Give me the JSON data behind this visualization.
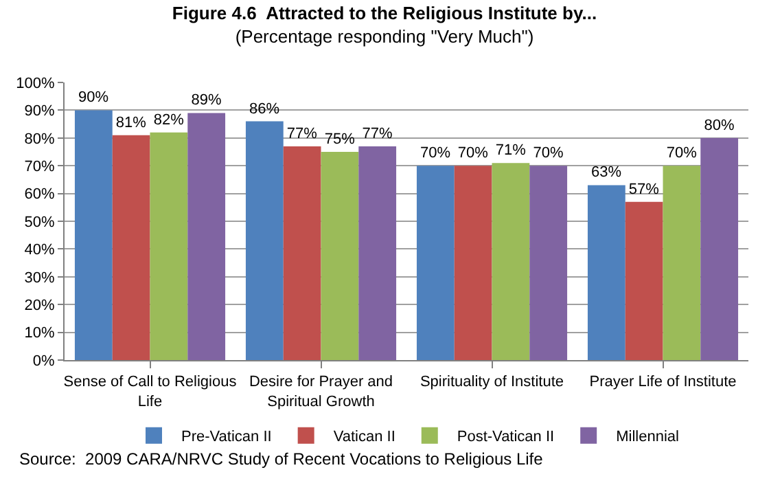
{
  "chart_data": {
    "type": "bar",
    "title": "Figure 4.6  Attracted to the Religious Institute by...",
    "subtitle": "(Percentage responding \"Very Much\")",
    "categories": [
      "Sense of Call to Religious Life",
      "Desire for Prayer and Spiritual Growth",
      "Spirituality of Institute",
      "Prayer Life of Institute"
    ],
    "series": [
      {
        "name": "Pre-Vatican II",
        "color": "#4f81bd",
        "values": [
          90,
          86,
          70,
          63
        ],
        "value_labels": [
          "90%",
          "86%",
          "70%",
          "63%"
        ]
      },
      {
        "name": "Vatican II",
        "color": "#c0504d",
        "values": [
          81,
          77,
          70,
          57
        ],
        "value_labels": [
          "81%",
          "77%",
          "70%",
          "57%"
        ]
      },
      {
        "name": "Post-Vatican II",
        "color": "#9bbb59",
        "values": [
          82,
          75,
          71,
          70
        ],
        "value_labels": [
          "82%",
          "75%",
          "71%",
          "70%"
        ]
      },
      {
        "name": "Millennial",
        "color": "#8064a2",
        "values": [
          89,
          77,
          70,
          80
        ],
        "value_labels": [
          "89%",
          "77%",
          "70%",
          "80%"
        ]
      }
    ],
    "ylim": [
      0,
      100
    ],
    "yticks": [
      {
        "value": 0,
        "label": "0%"
      },
      {
        "value": 10,
        "label": "10%"
      },
      {
        "value": 20,
        "label": "20%"
      },
      {
        "value": 30,
        "label": "30%"
      },
      {
        "value": 40,
        "label": "40%"
      },
      {
        "value": 50,
        "label": "50%"
      },
      {
        "value": 60,
        "label": "60%"
      },
      {
        "value": 70,
        "label": "70%"
      },
      {
        "value": 80,
        "label": "80%"
      },
      {
        "value": 90,
        "label": "90%"
      },
      {
        "value": 100,
        "label": "100%"
      }
    ],
    "grid": "y",
    "legend": "bottom",
    "annotations": [
      "Source:  2009 CARA/NRVC Study of Recent Vocations to Religious Life"
    ]
  }
}
